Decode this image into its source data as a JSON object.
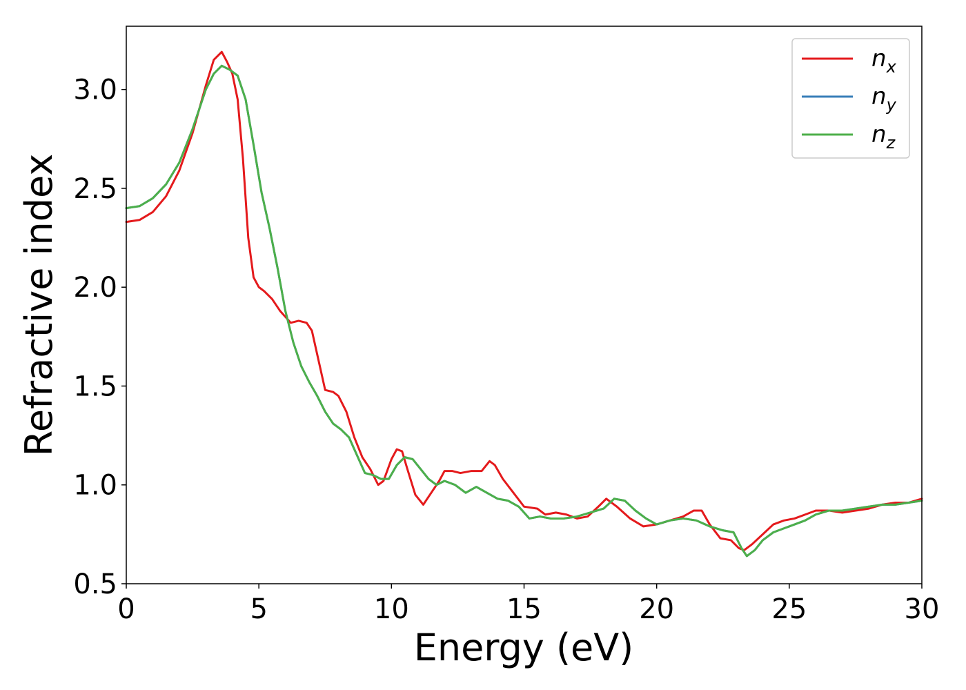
{
  "chart_data": {
    "type": "line",
    "xlabel": "Energy (eV)",
    "ylabel": "Refractive index",
    "xlim": [
      0,
      30
    ],
    "ylim": [
      0.5,
      3.32
    ],
    "x_ticks": [
      0,
      5,
      10,
      15,
      20,
      25,
      30
    ],
    "x_tick_labels": [
      "0",
      "5",
      "10",
      "15",
      "20",
      "25",
      "30"
    ],
    "y_ticks": [
      0.5,
      1.0,
      1.5,
      2.0,
      2.5,
      3.0
    ],
    "y_tick_labels": [
      "0.5",
      "1.0",
      "1.5",
      "2.0",
      "2.5",
      "3.0"
    ],
    "grid": false,
    "legend_position": "top-right",
    "series": [
      {
        "name": "n_x",
        "legend_base": "n",
        "legend_sub": "x",
        "color": "#e41a1c",
        "x": [
          0,
          0.5,
          1,
          1.5,
          2,
          2.5,
          3,
          3.3,
          3.6,
          3.8,
          4.0,
          4.2,
          4.4,
          4.6,
          4.8,
          5.0,
          5.2,
          5.5,
          5.8,
          6.2,
          6.5,
          6.8,
          7.0,
          7.2,
          7.5,
          7.8,
          8.0,
          8.3,
          8.6,
          8.9,
          9.2,
          9.5,
          9.7,
          10.0,
          10.2,
          10.4,
          10.6,
          10.9,
          11.2,
          11.5,
          11.8,
          12.0,
          12.3,
          12.6,
          13.0,
          13.4,
          13.7,
          13.9,
          14.2,
          14.6,
          15.0,
          15.5,
          15.8,
          16.2,
          16.6,
          17.0,
          17.4,
          17.8,
          18.1,
          18.5,
          19.0,
          19.5,
          20.0,
          20.5,
          21.0,
          21.4,
          21.7,
          22.0,
          22.4,
          22.8,
          23.1,
          23.3,
          23.6,
          24.0,
          24.4,
          24.8,
          25.2,
          25.6,
          26.0,
          26.5,
          27.0,
          27.5,
          28.0,
          28.5,
          29.0,
          29.5,
          30.0
        ],
        "values": [
          2.33,
          2.34,
          2.38,
          2.46,
          2.59,
          2.78,
          3.02,
          3.15,
          3.19,
          3.14,
          3.08,
          2.95,
          2.65,
          2.25,
          2.05,
          2.0,
          1.98,
          1.94,
          1.88,
          1.82,
          1.83,
          1.82,
          1.78,
          1.66,
          1.48,
          1.47,
          1.45,
          1.37,
          1.24,
          1.14,
          1.08,
          1.0,
          1.02,
          1.13,
          1.18,
          1.17,
          1.08,
          0.95,
          0.9,
          0.96,
          1.02,
          1.07,
          1.07,
          1.06,
          1.07,
          1.07,
          1.12,
          1.1,
          1.03,
          0.96,
          0.89,
          0.88,
          0.85,
          0.86,
          0.85,
          0.83,
          0.84,
          0.89,
          0.93,
          0.89,
          0.83,
          0.79,
          0.8,
          0.82,
          0.84,
          0.87,
          0.87,
          0.8,
          0.73,
          0.72,
          0.68,
          0.67,
          0.7,
          0.75,
          0.8,
          0.82,
          0.83,
          0.85,
          0.87,
          0.87,
          0.86,
          0.87,
          0.88,
          0.9,
          0.91,
          0.91,
          0.93
        ]
      },
      {
        "name": "n_y",
        "legend_base": "n",
        "legend_sub": "y",
        "color": "#377eb8",
        "x": [
          0,
          0.5,
          1,
          1.5,
          2,
          2.5,
          3,
          3.3,
          3.6,
          3.9,
          4.2,
          4.5,
          4.8,
          5.1,
          5.4,
          5.7,
          6.0,
          6.3,
          6.6,
          6.9,
          7.2,
          7.5,
          7.8,
          8.1,
          8.4,
          8.7,
          9.0,
          9.3,
          9.6,
          9.9,
          10.2,
          10.5,
          10.8,
          11.1,
          11.4,
          11.7,
          12.0,
          12.4,
          12.8,
          13.2,
          13.6,
          14.0,
          14.4,
          14.8,
          15.2,
          15.6,
          16.0,
          16.5,
          17.0,
          17.5,
          18.0,
          18.4,
          18.8,
          19.2,
          19.6,
          20.0,
          20.5,
          21.0,
          21.5,
          22.0,
          22.5,
          22.9,
          23.2,
          23.4,
          23.7,
          24.0,
          24.4,
          24.8,
          25.2,
          25.6,
          26.0,
          26.5,
          27.0,
          27.5,
          28.0,
          28.5,
          29.0,
          29.5,
          30.0
        ],
        "values": [
          2.4,
          2.41,
          2.45,
          2.52,
          2.63,
          2.8,
          3.0,
          3.08,
          3.12,
          3.1,
          3.07,
          2.95,
          2.72,
          2.48,
          2.3,
          2.1,
          1.88,
          1.72,
          1.6,
          1.52,
          1.45,
          1.37,
          1.31,
          1.28,
          1.24,
          1.15,
          1.06,
          1.05,
          1.03,
          1.03,
          1.1,
          1.14,
          1.13,
          1.08,
          1.03,
          1.0,
          1.02,
          1.0,
          0.96,
          0.99,
          0.96,
          0.93,
          0.92,
          0.89,
          0.83,
          0.84,
          0.83,
          0.83,
          0.84,
          0.86,
          0.88,
          0.93,
          0.92,
          0.87,
          0.83,
          0.8,
          0.82,
          0.83,
          0.82,
          0.79,
          0.77,
          0.76,
          0.68,
          0.64,
          0.67,
          0.72,
          0.76,
          0.78,
          0.8,
          0.82,
          0.85,
          0.87,
          0.87,
          0.88,
          0.89,
          0.9,
          0.9,
          0.91,
          0.92
        ]
      },
      {
        "name": "n_z",
        "legend_base": "n",
        "legend_sub": "z",
        "color": "#4daf4a",
        "x": [
          0,
          0.5,
          1,
          1.5,
          2,
          2.5,
          3,
          3.3,
          3.6,
          3.9,
          4.2,
          4.5,
          4.8,
          5.1,
          5.4,
          5.7,
          6.0,
          6.3,
          6.6,
          6.9,
          7.2,
          7.5,
          7.8,
          8.1,
          8.4,
          8.7,
          9.0,
          9.3,
          9.6,
          9.9,
          10.2,
          10.5,
          10.8,
          11.1,
          11.4,
          11.7,
          12.0,
          12.4,
          12.8,
          13.2,
          13.6,
          14.0,
          14.4,
          14.8,
          15.2,
          15.6,
          16.0,
          16.5,
          17.0,
          17.5,
          18.0,
          18.4,
          18.8,
          19.2,
          19.6,
          20.0,
          20.5,
          21.0,
          21.5,
          22.0,
          22.5,
          22.9,
          23.2,
          23.4,
          23.7,
          24.0,
          24.4,
          24.8,
          25.2,
          25.6,
          26.0,
          26.5,
          27.0,
          27.5,
          28.0,
          28.5,
          29.0,
          29.5,
          30.0
        ],
        "values": [
          2.4,
          2.41,
          2.45,
          2.52,
          2.63,
          2.8,
          3.0,
          3.08,
          3.12,
          3.1,
          3.07,
          2.95,
          2.72,
          2.48,
          2.3,
          2.1,
          1.88,
          1.72,
          1.6,
          1.52,
          1.45,
          1.37,
          1.31,
          1.28,
          1.24,
          1.15,
          1.06,
          1.05,
          1.03,
          1.03,
          1.1,
          1.14,
          1.13,
          1.08,
          1.03,
          1.0,
          1.02,
          1.0,
          0.96,
          0.99,
          0.96,
          0.93,
          0.92,
          0.89,
          0.83,
          0.84,
          0.83,
          0.83,
          0.84,
          0.86,
          0.88,
          0.93,
          0.92,
          0.87,
          0.83,
          0.8,
          0.82,
          0.83,
          0.82,
          0.79,
          0.77,
          0.76,
          0.68,
          0.64,
          0.67,
          0.72,
          0.76,
          0.78,
          0.8,
          0.82,
          0.85,
          0.87,
          0.87,
          0.88,
          0.89,
          0.9,
          0.9,
          0.91,
          0.92
        ]
      }
    ]
  }
}
